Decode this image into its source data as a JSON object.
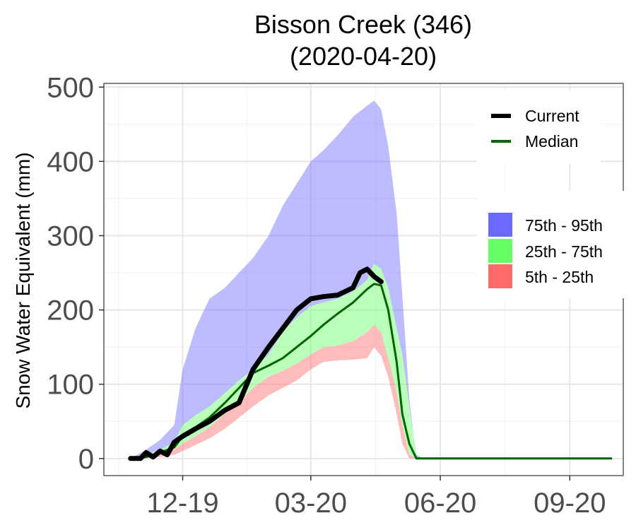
{
  "chart_data": {
    "type": "area",
    "title": "Bisson Creek (346)",
    "subtitle": "(2020-04-20)",
    "xlabel": "",
    "ylabel": "Snow Water Equivalent (mm)",
    "ylim": [
      -23,
      505
    ],
    "xlim": [
      "2019-10-06",
      "2020-10-09"
    ],
    "yticks": [
      0,
      100,
      200,
      300,
      400,
      500
    ],
    "yticklabels": [
      "0",
      "100",
      "200",
      "300",
      "400",
      "500"
    ],
    "xticks": [
      "2019-12-01",
      "2020-03-01",
      "2020-06-01",
      "2020-09-01"
    ],
    "xticklabels": [
      "12-19",
      "03-20",
      "06-20",
      "09-20"
    ],
    "grid": true,
    "legend_position": "right",
    "colors": {
      "p75_95": "#6a6aff",
      "p25_75": "#66ff66",
      "p5_25": "#ff6a6a",
      "current": "#000000",
      "median": "#006400"
    },
    "legend": {
      "lines": [
        {
          "key": "current",
          "label": "Current"
        },
        {
          "key": "median",
          "label": "Median"
        }
      ],
      "bands": [
        {
          "key": "p75_95",
          "label": "75th - 95th"
        },
        {
          "key": "p25_75",
          "label": "25th - 75th"
        },
        {
          "key": "p5_25",
          "label": "5th - 25th"
        }
      ]
    },
    "x": [
      "2019-10-25",
      "2019-11-05",
      "2019-11-15",
      "2019-11-25",
      "2019-12-01",
      "2019-12-10",
      "2019-12-20",
      "2019-12-31",
      "2020-01-10",
      "2020-01-20",
      "2020-01-31",
      "2020-02-10",
      "2020-02-20",
      "2020-03-01",
      "2020-03-10",
      "2020-03-20",
      "2020-03-31",
      "2020-04-10",
      "2020-04-15",
      "2020-04-20",
      "2020-04-25",
      "2020-05-01",
      "2020-05-05",
      "2020-05-10",
      "2020-05-15",
      "2020-05-20",
      "2020-05-25",
      "2020-06-01",
      "2020-06-10",
      "2020-06-20",
      "2020-07-01",
      "2020-10-01"
    ],
    "series": [
      {
        "key": "p95",
        "values": [
          0,
          12,
          25,
          45,
          120,
          175,
          215,
          230,
          250,
          270,
          300,
          340,
          370,
          400,
          415,
          435,
          460,
          475,
          482,
          470,
          420,
          330,
          220,
          80,
          0,
          0,
          0,
          0,
          0,
          0,
          0,
          0
        ]
      },
      {
        "key": "p75",
        "values": [
          0,
          5,
          12,
          22,
          45,
          58,
          70,
          88,
          105,
          120,
          140,
          170,
          190,
          205,
          210,
          215,
          225,
          240,
          262,
          255,
          230,
          175,
          140,
          70,
          5,
          0,
          0,
          0,
          0,
          0,
          0,
          0
        ]
      },
      {
        "key": "p25",
        "values": [
          0,
          2,
          6,
          12,
          20,
          30,
          42,
          60,
          75,
          95,
          110,
          118,
          128,
          140,
          150,
          152,
          158,
          170,
          180,
          170,
          135,
          90,
          45,
          5,
          0,
          0,
          0,
          0,
          0,
          0,
          0,
          0
        ]
      },
      {
        "key": "p5",
        "values": [
          0,
          0,
          2,
          5,
          10,
          18,
          27,
          40,
          55,
          70,
          85,
          95,
          105,
          120,
          130,
          132,
          133,
          135,
          150,
          138,
          110,
          60,
          20,
          0,
          0,
          0,
          0,
          0,
          0,
          0,
          0,
          0
        ]
      },
      {
        "key": "median",
        "name": "Median",
        "values": [
          0,
          2,
          8,
          15,
          30,
          42,
          55,
          75,
          95,
          115,
          125,
          135,
          150,
          165,
          180,
          195,
          210,
          228,
          235,
          233,
          200,
          130,
          60,
          20,
          0,
          0,
          0,
          0,
          0,
          0,
          0,
          0
        ]
      }
    ],
    "current": {
      "name": "Current",
      "x": [
        "2019-10-25",
        "2019-11-01",
        "2019-11-05",
        "2019-11-10",
        "2019-11-15",
        "2019-11-20",
        "2019-11-25",
        "2019-12-01",
        "2019-12-10",
        "2019-12-20",
        "2019-12-31",
        "2020-01-10",
        "2020-01-20",
        "2020-01-31",
        "2020-02-10",
        "2020-02-20",
        "2020-03-01",
        "2020-03-10",
        "2020-03-20",
        "2020-03-31",
        "2020-04-05",
        "2020-04-10",
        "2020-04-15",
        "2020-04-20"
      ],
      "values": [
        0,
        0,
        8,
        2,
        10,
        5,
        22,
        30,
        40,
        50,
        65,
        75,
        120,
        150,
        175,
        200,
        215,
        218,
        220,
        230,
        250,
        255,
        245,
        238
      ]
    }
  }
}
